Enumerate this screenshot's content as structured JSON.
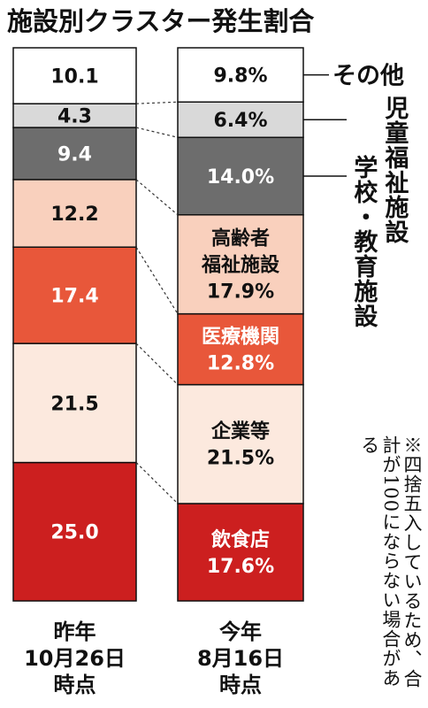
{
  "chart_data": {
    "type": "bar",
    "title": "施設別クラスター発生割合",
    "categories": [
      "昨年\n10月26日\n時点",
      "今年\n8月16日\n時点"
    ],
    "stack_order": [
      "飲食店",
      "企業等",
      "医療機関",
      "高齢者福祉施設",
      "学校・教育施設",
      "児童福祉施設",
      "その他"
    ],
    "series": [
      {
        "name": "その他",
        "values": [
          10.1,
          9.8
        ],
        "labels": [
          "10.1",
          "9.8%"
        ],
        "color": "#ffffff",
        "text_color": "#111111"
      },
      {
        "name": "児童福祉施設",
        "values": [
          4.3,
          6.4
        ],
        "labels": [
          "4.3",
          "6.4%"
        ],
        "color": "#d9d9d9",
        "text_color": "#111111"
      },
      {
        "name": "学校・教育施設",
        "values": [
          9.4,
          14.0
        ],
        "labels": [
          "9.4",
          "14.0%"
        ],
        "color": "#6d6d6d",
        "text_color": "#ffffff"
      },
      {
        "name": "高齢者福祉施設",
        "values": [
          12.2,
          17.9
        ],
        "labels": [
          "12.2",
          "高齢者\n福祉施設\n17.9%"
        ],
        "color": "#f9d0bd",
        "text_color": "#111111"
      },
      {
        "name": "医療機関",
        "values": [
          17.4,
          12.8
        ],
        "labels": [
          "17.4",
          "医療機関\n12.8%"
        ],
        "color": "#e8573a",
        "text_color": "#ffffff"
      },
      {
        "name": "企業等",
        "values": [
          21.5,
          21.5
        ],
        "labels": [
          "21.5",
          "企業等\n21.5%"
        ],
        "color": "#fce9de",
        "text_color": "#111111"
      },
      {
        "name": "飲食店",
        "values": [
          25.0,
          17.6
        ],
        "labels": [
          "25.0",
          "飲食店\n17.6%"
        ],
        "color": "#cc1f1f",
        "text_color": "#ffffff"
      }
    ],
    "legend_labels": {
      "other": "その他",
      "child": "児童福祉施設",
      "school": "学校・教育施設"
    },
    "note": "※四捨五入しているため、合計が100にならない場合がある"
  }
}
